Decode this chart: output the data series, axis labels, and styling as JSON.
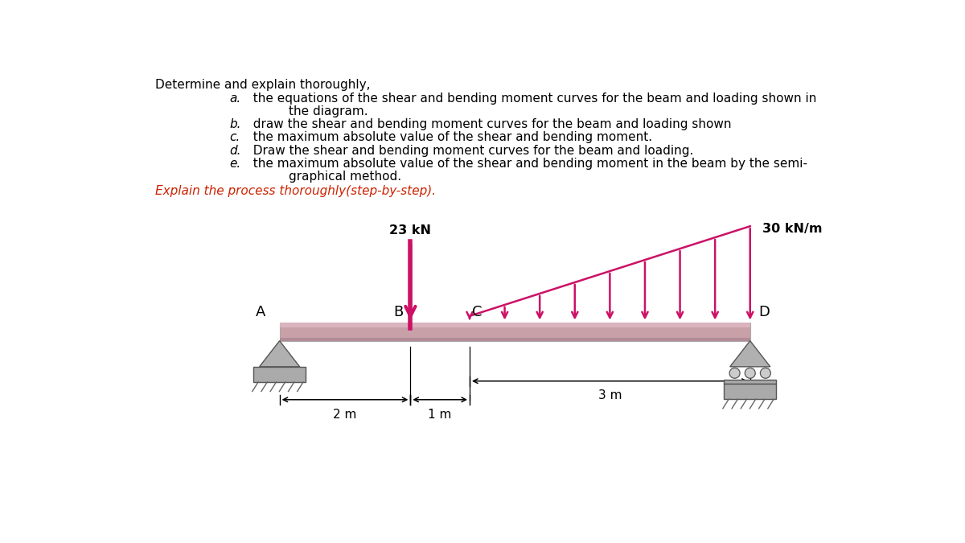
{
  "bg_color": "#ffffff",
  "text_color": "#000000",
  "red_text_color": "#cc2200",
  "beam_color": "#c8a0a8",
  "load_color": "#cc1166",
  "title_line1": "Determine and explain thoroughly,",
  "title_lines_indented": [
    [
      "a.",
      "  the equations of the shear and bending moment curves for the beam and loading shown in"
    ],
    [
      "",
      "        the diagram."
    ],
    [
      "b.",
      "  draw the shear and bending moment curves for the beam and loading shown"
    ],
    [
      "c.",
      "  the maximum absolute value of the shear and bending moment."
    ],
    [
      "d.",
      "  Draw the shear and bending moment curves for the beam and loading."
    ],
    [
      "e.",
      "  the maximum absolute value of the shear and bending moment in the beam by the semi-"
    ],
    [
      "",
      "        graphical method."
    ]
  ],
  "red_line": "Explain the process thoroughly(step-by-step).",
  "force_label": "23 kN",
  "dist_load_label": "30 kN/m",
  "dim_2m": "2 m",
  "dim_1m": "1 m",
  "dim_3m": "3 m",
  "label_A": "A",
  "label_B": "B",
  "label_C": "C",
  "label_D": "D"
}
